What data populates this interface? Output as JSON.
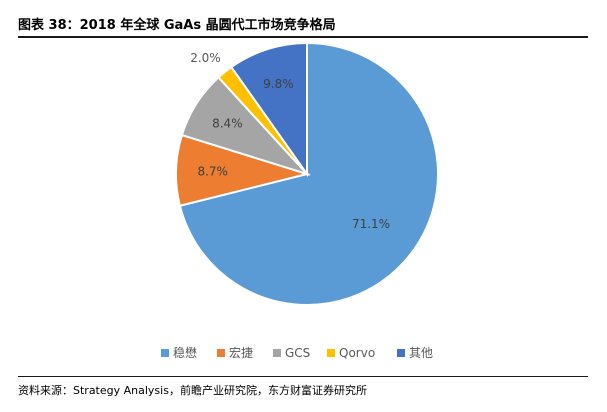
{
  "figure": {
    "title": "图表 38：2018 年全球 GaAs 晶圆代工市场竞争格局",
    "source": "资料来源：Strategy Analysis，前瞻产业研究院，东方财富证券研究所"
  },
  "chart_data": {
    "type": "pie",
    "title": "",
    "legend_position": "bottom",
    "slices": [
      {
        "label": "稳懋",
        "value": 71.1,
        "value_label": "71.1%",
        "color": "#5b9bd5"
      },
      {
        "label": "宏捷",
        "value": 8.7,
        "value_label": "8.7%",
        "color": "#ed7d31"
      },
      {
        "label": "GCS",
        "value": 8.4,
        "value_label": "8.4%",
        "color": "#a5a5a5"
      },
      {
        "label": "Qorvo",
        "value": 2.0,
        "value_label": "2.0%",
        "color": "#ffc000"
      },
      {
        "label": "其他",
        "value": 9.8,
        "value_label": "9.8%",
        "color": "#4472c4"
      }
    ]
  }
}
